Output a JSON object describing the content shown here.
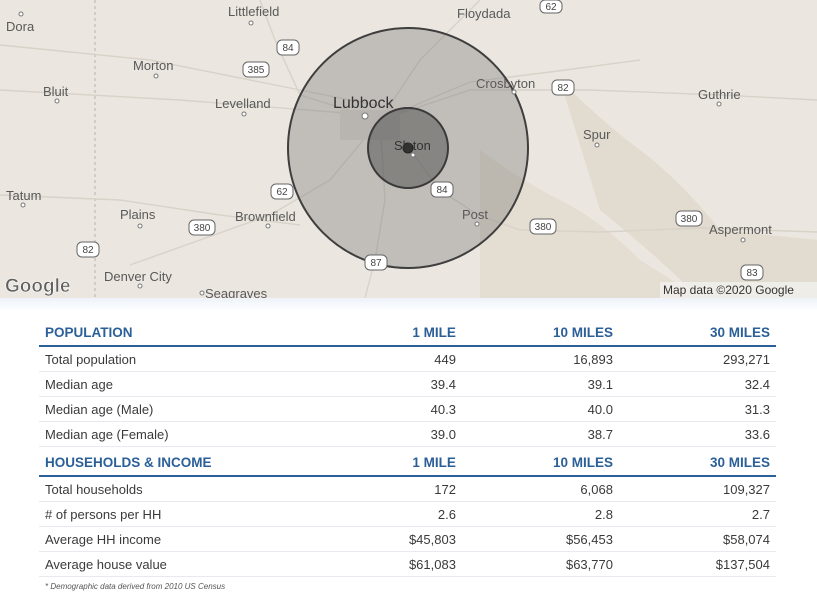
{
  "map": {
    "places": [
      {
        "name": "Dora"
      },
      {
        "name": "Littlefield"
      },
      {
        "name": "Floydada"
      },
      {
        "name": "Morton"
      },
      {
        "name": "Bluit"
      },
      {
        "name": "Levelland"
      },
      {
        "name": "Lubbock"
      },
      {
        "name": "Crosbyton"
      },
      {
        "name": "Guthrie"
      },
      {
        "name": "Slaton"
      },
      {
        "name": "Spur"
      },
      {
        "name": "Tatum"
      },
      {
        "name": "Plains"
      },
      {
        "name": "Brownfield"
      },
      {
        "name": "Post"
      },
      {
        "name": "Aspermont"
      },
      {
        "name": "Denver City"
      },
      {
        "name": "Seagraves"
      }
    ],
    "route_shields": [
      "62",
      "84",
      "385",
      "82",
      "62",
      "84",
      "380",
      "380",
      "380",
      "82",
      "87",
      "83"
    ],
    "google_logo": "Google",
    "attribution": "Map data ©2020 Google",
    "colors": {
      "land": "#ebe6df",
      "circle_fill": "#6b6b6b",
      "circle_stroke": "#3e3e3e"
    }
  },
  "population": {
    "header": {
      "label": "POPULATION",
      "col1": "1 MILE",
      "col2": "10 MILES",
      "col3": "30 MILES"
    },
    "rows": [
      {
        "label": "Total population",
        "v1": "449",
        "v2": "16,893",
        "v3": "293,271"
      },
      {
        "label": "Median age",
        "v1": "39.4",
        "v2": "39.1",
        "v3": "32.4"
      },
      {
        "label": "Median age (Male)",
        "v1": "40.3",
        "v2": "40.0",
        "v3": "31.3"
      },
      {
        "label": "Median age (Female)",
        "v1": "39.0",
        "v2": "38.7",
        "v3": "33.6"
      }
    ]
  },
  "households": {
    "header": {
      "label": "HOUSEHOLDS & INCOME",
      "col1": "1 MILE",
      "col2": "10 MILES",
      "col3": "30 MILES"
    },
    "rows": [
      {
        "label": "Total households",
        "v1": "172",
        "v2": "6,068",
        "v3": "109,327"
      },
      {
        "label": "# of persons per HH",
        "v1": "2.6",
        "v2": "2.8",
        "v3": "2.7"
      },
      {
        "label": "Average HH income",
        "v1": "$45,803",
        "v2": "$56,453",
        "v3": "$58,074"
      },
      {
        "label": "Average house value",
        "v1": "$61,083",
        "v2": "$63,770",
        "v3": "$137,504"
      }
    ]
  },
  "footnote": "* Demographic data derived from 2010 US Census",
  "colors": {
    "accent": "#2b5f98"
  }
}
